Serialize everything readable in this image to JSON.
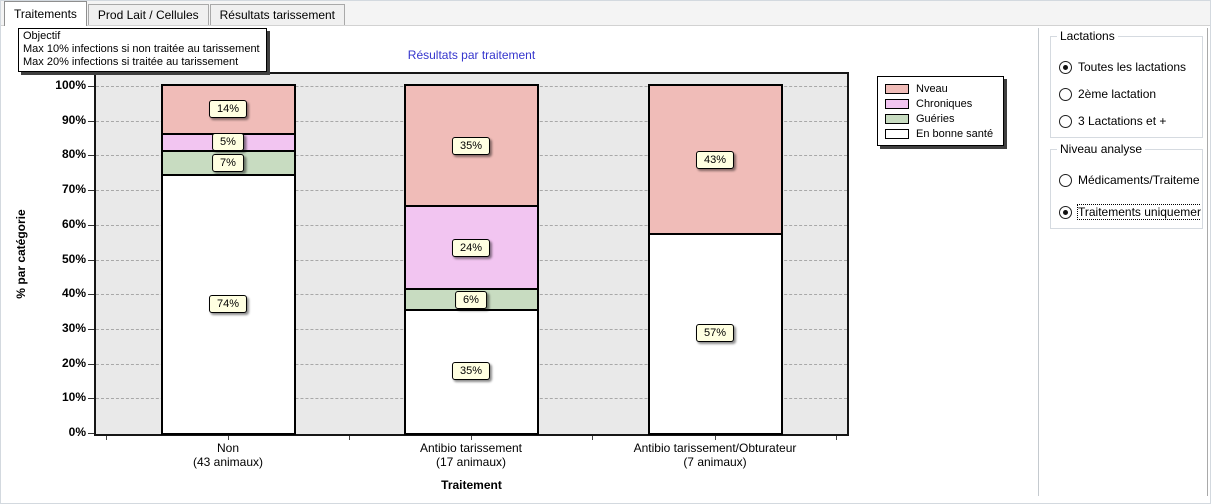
{
  "tabs": [
    {
      "label": "Traitements",
      "active": true
    },
    {
      "label": "Prod Lait / Cellules",
      "active": false
    },
    {
      "label": "Résultats tarissement",
      "active": false
    }
  ],
  "tooltip": {
    "lines": [
      "Objectif",
      "Max 10% infections si non traitée au tarissement",
      "Max 20% infections si traitée au tarissement"
    ]
  },
  "chart_data": {
    "type": "bar",
    "stacked": true,
    "title": "Résultats par traitement",
    "xlabel": "Traitement",
    "ylabel": "% par catégorie",
    "ylim": [
      0,
      100
    ],
    "ytick_step": 10,
    "ytick_suffix": "%",
    "bar_label_suffix": "%",
    "grid": "horizontal-dashed",
    "legend_position": "outside-top-right",
    "plot_background": "#e9e9e9",
    "categories": [
      {
        "label": "Non",
        "sublabel": "(43 animaux)"
      },
      {
        "label": "Antibio tarissement",
        "sublabel": "(17 animaux)"
      },
      {
        "label": "Antibio tarissement/Obturateur",
        "sublabel": "(7 animaux)"
      }
    ],
    "series": [
      {
        "name": "Nveau",
        "color": "#f0bcb8",
        "values": [
          14,
          35,
          43
        ]
      },
      {
        "name": "Chroniques",
        "color": "#f2c5f1",
        "values": [
          5,
          24,
          0
        ]
      },
      {
        "name": "Guéries",
        "color": "#c8dcc1",
        "values": [
          7,
          6,
          0
        ]
      },
      {
        "name": "En bonne santé",
        "color": "#ffffff",
        "values": [
          74,
          35,
          57
        ]
      }
    ]
  },
  "colors": {
    "title_blue": "#3535cd",
    "value_label_bg": "#ffffe1"
  },
  "right_panel": {
    "groups": [
      {
        "title": "Lactations",
        "options": [
          {
            "label": "Toutes les lactations",
            "selected": true
          },
          {
            "label": "2ème lactation",
            "selected": false
          },
          {
            "label": "3 Lactations et +",
            "selected": false
          }
        ]
      },
      {
        "title": "Niveau analyse",
        "options": [
          {
            "label": "Médicaments/Traiteme",
            "selected": false
          },
          {
            "label": "Traitements uniquemer",
            "selected": true,
            "focused": true
          }
        ]
      }
    ]
  }
}
